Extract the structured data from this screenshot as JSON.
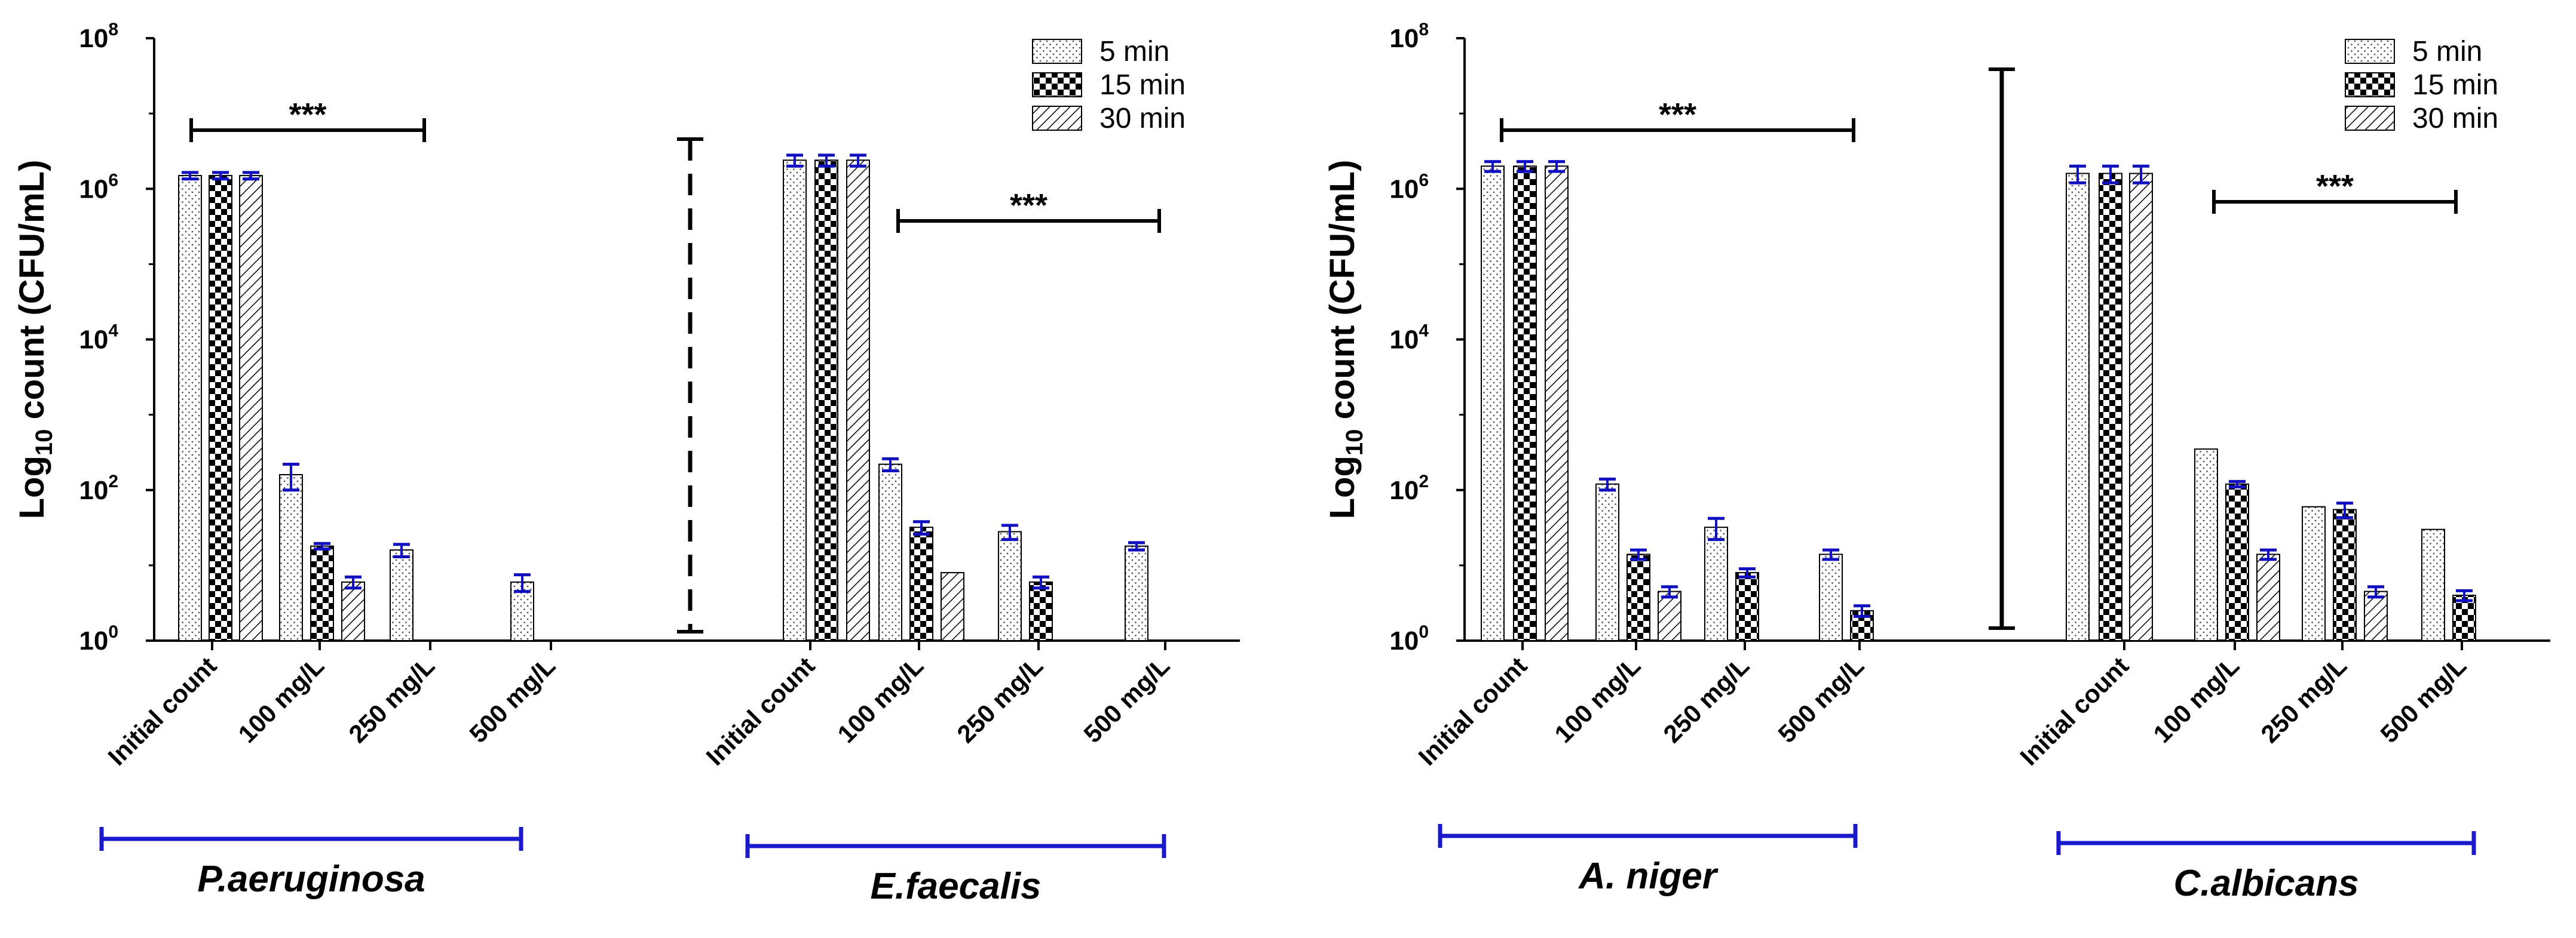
{
  "legend": {
    "items": [
      {
        "label": "5 min",
        "pattern": "dots"
      },
      {
        "label": "15 min",
        "pattern": "checker"
      },
      {
        "label": "30  min",
        "pattern": "hatch"
      }
    ]
  },
  "colors": {
    "axis": "#000000",
    "error_bar": "#1010c0",
    "bracket": "#1a1acc",
    "bar_fill": "#ffffff"
  },
  "chart_data": [
    {
      "type": "bar",
      "ylabel_main": "Log",
      "ylabel_sub": "10",
      "ylabel_rest": " count (CFU/mL)",
      "yscale": "log",
      "ylim": [
        1,
        100000000
      ],
      "yticks": [
        {
          "value": 1,
          "base": "10",
          "exp": "0"
        },
        {
          "value": 100,
          "base": "10",
          "exp": "2"
        },
        {
          "value": 10000,
          "base": "10",
          "exp": "4"
        },
        {
          "value": 1000000,
          "base": "10",
          "exp": "6"
        },
        {
          "value": 100000000,
          "base": "10",
          "exp": "8"
        }
      ],
      "groups": [
        {
          "organism": "P.aeruginosa",
          "categories": [
            "Initial count",
            "100 mg/L",
            "250 mg/L",
            "500 mg/L"
          ],
          "series": [
            {
              "name": "5 min",
              "values": [
                1500000,
                160,
                16,
                6
              ],
              "errors": [
                150000,
                60,
                3,
                1.5
              ]
            },
            {
              "name": "15 min",
              "values": [
                1500000,
                18,
                null,
                null
              ],
              "errors": [
                150000,
                1.5,
                null,
                null
              ]
            },
            {
              "name": "30 min",
              "values": [
                1500000,
                6,
                null,
                null
              ],
              "errors": [
                150000,
                1,
                null,
                null
              ]
            }
          ],
          "significance": {
            "label": "***",
            "from_category": 0,
            "to_category": 2
          }
        },
        {
          "organism": "E.faecalis",
          "categories": [
            "Initial count",
            "100 mg/L",
            "250 mg/L",
            "500 mg/L"
          ],
          "series": [
            {
              "name": "5 min",
              "values": [
                2400000,
                220,
                28,
                18
              ],
              "errors": [
                400000,
                40,
                6,
                2
              ]
            },
            {
              "name": "15 min",
              "values": [
                2400000,
                32,
                6,
                null
              ],
              "errors": [
                400000,
                6,
                1,
                null
              ]
            },
            {
              "name": "30 min",
              "values": [
                2400000,
                8,
                null,
                null
              ],
              "errors": [
                400000,
                0,
                null,
                null
              ]
            }
          ],
          "significance": {
            "label": "***",
            "from_category": 1,
            "to_category": 3
          }
        }
      ],
      "separator": "dashed"
    },
    {
      "type": "bar",
      "ylabel_main": "Log",
      "ylabel_sub": "10",
      "ylabel_rest": " count (CFU/mL)",
      "yscale": "log",
      "ylim": [
        1,
        100000000
      ],
      "yticks": [
        {
          "value": 1,
          "base": "10",
          "exp": "0"
        },
        {
          "value": 100,
          "base": "10",
          "exp": "2"
        },
        {
          "value": 10000,
          "base": "10",
          "exp": "4"
        },
        {
          "value": 1000000,
          "base": "10",
          "exp": "6"
        },
        {
          "value": 100000000,
          "base": "10",
          "exp": "8"
        }
      ],
      "groups": [
        {
          "organism": "A. niger",
          "categories": [
            "Initial count",
            "100 mg/L",
            "250 mg/L",
            "500 mg/L"
          ],
          "series": [
            {
              "name": "5 min",
              "values": [
                2000000,
                120,
                32,
                14
              ],
              "errors": [
                300000,
                20,
                10,
                2
              ]
            },
            {
              "name": "15 min",
              "values": [
                2000000,
                14,
                8,
                2.5
              ],
              "errors": [
                300000,
                2,
                1,
                0.4
              ]
            },
            {
              "name": "30 min",
              "values": [
                2000000,
                4.5,
                null,
                null
              ],
              "errors": [
                300000,
                0.7,
                null,
                null
              ]
            }
          ],
          "significance": {
            "label": "***",
            "from_category": 0,
            "to_category": 3
          }
        },
        {
          "organism": "C.albicans",
          "categories": [
            "Initial count",
            "100 mg/L",
            "250 mg/L",
            "500 mg/L"
          ],
          "series": [
            {
              "name": "5 min",
              "values": [
                1600000,
                350,
                60,
                30
              ],
              "errors": [
                400000,
                0,
                0,
                0
              ]
            },
            {
              "name": "15 min",
              "values": [
                1600000,
                120,
                55,
                4
              ],
              "errors": [
                400000,
                10,
                12,
                0.6
              ]
            },
            {
              "name": "30 min",
              "values": [
                1600000,
                14,
                4.5,
                null
              ],
              "errors": [
                400000,
                2,
                0.7,
                null
              ]
            }
          ],
          "significance": {
            "label": "***",
            "from_category": 1,
            "to_category": 3
          }
        }
      ],
      "separator": "solid"
    }
  ]
}
